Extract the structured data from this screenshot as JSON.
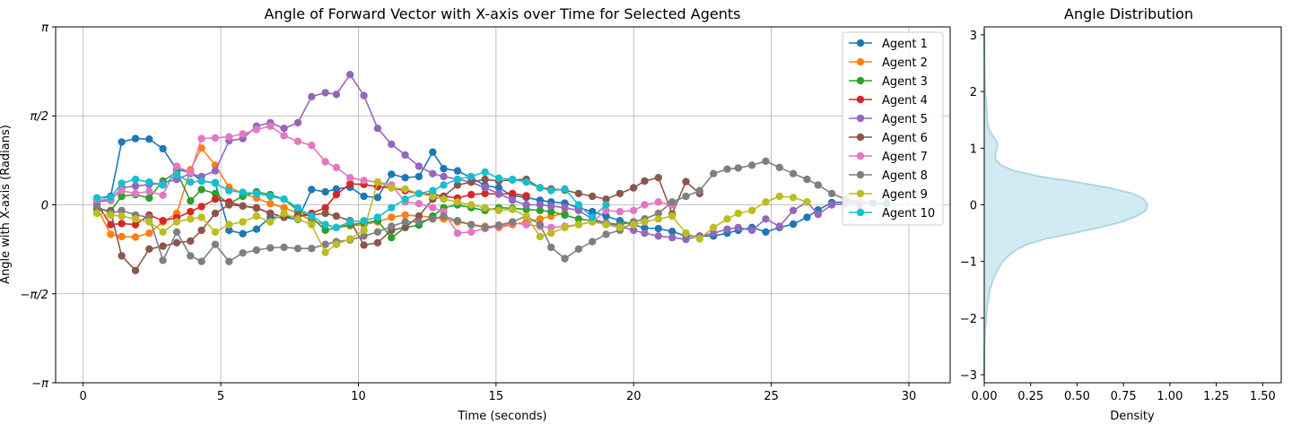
{
  "main_chart": {
    "title": "Angle of Forward Vector with X-axis over Time for Selected Agents",
    "xlabel": "Time (seconds)",
    "ylabel": "Angle with X-axis (Radians)",
    "xticks": [
      0,
      5,
      10,
      15,
      20,
      25,
      30
    ],
    "yticks": [
      {
        "value": -3.14159,
        "label": "−π"
      },
      {
        "value": -1.5708,
        "label": "−π/2"
      },
      {
        "value": 0,
        "label": "0"
      },
      {
        "value": 1.5708,
        "label": "π/2"
      },
      {
        "value": 3.14159,
        "label": "π"
      }
    ]
  },
  "side_chart": {
    "title": "Angle Distribution",
    "xlabel": "Density",
    "xticks": [
      "0.00",
      "0.25",
      "0.50",
      "0.75",
      "1.00",
      "1.25",
      "1.50"
    ],
    "yticks": [
      "−3",
      "−2",
      "−1",
      "0",
      "1",
      "2",
      "3"
    ]
  },
  "chart_data": [
    {
      "type": "line",
      "title": "Angle of Forward Vector with X-axis over Time for Selected Agents",
      "xlabel": "Time (seconds)",
      "ylabel": "Angle with X-axis (Radians)",
      "xlim": [
        -1,
        31.5
      ],
      "ylim": [
        -3.14159,
        3.14159
      ],
      "grid": true,
      "legend": "top-right",
      "x": [
        0.5,
        1.0,
        1.4,
        1.9,
        2.4,
        2.9,
        3.4,
        3.9,
        4.3,
        4.8,
        5.3,
        5.8,
        6.3,
        6.8,
        7.3,
        7.8,
        8.3,
        8.8,
        9.2,
        9.7,
        10.2,
        10.7,
        11.2,
        11.7,
        12.2,
        12.7,
        13.1,
        13.6,
        14.1,
        14.6,
        15.1,
        15.6,
        16.1,
        16.6,
        17.0,
        17.5,
        18.0,
        18.5,
        19.0,
        19.5,
        20.0,
        20.4,
        20.9,
        21.4,
        21.9,
        22.4,
        22.9,
        23.4,
        23.8,
        24.3,
        24.8,
        25.3,
        25.8,
        26.3,
        26.7,
        27.2,
        27.7,
        28.2,
        28.7,
        29.2
      ],
      "series": [
        {
          "name": "Agent 1",
          "color": "#1f77b4",
          "values": [
            0.12,
            0.15,
            1.11,
            1.17,
            1.16,
            0.99,
            0.62,
            0.58,
            0.42,
            0.39,
            -0.45,
            -0.51,
            -0.43,
            -0.22,
            -0.22,
            -0.26,
            0.27,
            0.23,
            0.28,
            0.31,
            0.15,
            0.13,
            0.54,
            0.48,
            0.5,
            0.93,
            0.64,
            0.6,
            0.48,
            0.34,
            0.3,
            0.16,
            0.13,
            0.08,
            0.05,
            0.03,
            -0.05,
            -0.12,
            -0.2,
            -0.28,
            -0.35,
            -0.41,
            -0.42,
            -0.47,
            -0.55,
            -0.55,
            -0.55,
            -0.5,
            -0.45,
            -0.4,
            -0.48,
            -0.4,
            -0.34,
            -0.22,
            -0.09,
            0.04,
            0.05,
            0.04,
            0.03,
            0.02
          ]
        },
        {
          "name": "Agent 2",
          "color": "#ff7f0e",
          "values": [
            -0.05,
            -0.52,
            -0.56,
            -0.57,
            -0.5,
            -0.3,
            -0.15,
            0.62,
            1.0,
            0.7,
            0.31,
            0.2,
            0.12,
            0.02,
            -0.05,
            -0.15,
            -0.28,
            -0.35,
            -0.4,
            -0.37,
            -0.35,
            -0.3,
            -0.22,
            -0.18,
            -0.2,
            -0.22,
            -0.25,
            -0.3,
            -0.35,
            -0.38,
            -0.4,
            -0.35,
            -0.3,
            -0.25,
            -0.2,
            -0.15,
            null,
            null,
            null,
            null,
            null,
            null,
            null,
            null,
            null,
            null,
            null,
            null,
            null,
            null,
            null,
            null,
            null,
            null,
            null,
            null,
            null,
            null,
            null,
            null
          ]
        },
        {
          "name": "Agent 3",
          "color": "#2ca02c",
          "values": [
            -0.08,
            -0.1,
            0.15,
            0.18,
            0.12,
            0.42,
            0.58,
            0.07,
            0.27,
            0.2,
            0.02,
            0.15,
            0.23,
            0.18,
            0.1,
            -0.1,
            -0.22,
            -0.45,
            -0.4,
            -0.35,
            -0.32,
            -0.28,
            -0.58,
            -0.4,
            -0.36,
            -0.2,
            -0.05,
            0.0,
            -0.05,
            -0.1,
            -0.05,
            -0.06,
            -0.08,
            -0.1,
            -0.12,
            -0.18,
            -0.25,
            -0.28,
            -0.32,
            -0.35,
            -0.3,
            -0.25,
            null,
            null,
            null,
            null,
            null,
            null,
            null,
            null,
            null,
            null,
            null,
            null,
            null,
            null,
            null,
            null,
            null,
            null
          ]
        },
        {
          "name": "Agent 4",
          "color": "#d62728",
          "values": [
            0.02,
            -0.35,
            -0.33,
            -0.35,
            -0.18,
            -0.28,
            -0.23,
            -0.12,
            -0.03,
            0.1,
            0.05,
            -0.02,
            -0.06,
            -0.15,
            -0.22,
            -0.2,
            -0.15,
            -0.05,
            0.18,
            0.37,
            0.36,
            0.32,
            0.3,
            0.25,
            0.2,
            0.18,
            0.15,
            0.12,
            0.18,
            0.2,
            0.19,
            0.2,
            0.16,
            null,
            null,
            null,
            null,
            null,
            null,
            null,
            null,
            null,
            null,
            null,
            null,
            null,
            null,
            null,
            null,
            null,
            null,
            null,
            null,
            null,
            null,
            null,
            null,
            null,
            null,
            null
          ]
        },
        {
          "name": "Agent 5",
          "color": "#9467bd",
          "values": [
            0.05,
            0.08,
            0.3,
            0.33,
            0.36,
            0.38,
            0.45,
            0.55,
            0.5,
            0.6,
            1.13,
            1.17,
            1.39,
            1.45,
            1.35,
            1.45,
            1.91,
            1.98,
            1.95,
            2.3,
            1.93,
            1.35,
            1.07,
            0.88,
            0.68,
            0.55,
            0.5,
            0.45,
            0.4,
            0.3,
            0.2,
            0.08,
            0.0,
            0.0,
            -0.02,
            -0.05,
            -0.1,
            -0.25,
            -0.32,
            -0.38,
            -0.45,
            -0.5,
            -0.55,
            -0.58,
            -0.61,
            -0.55,
            -0.5,
            -0.43,
            -0.4,
            -0.45,
            -0.25,
            -0.38,
            -0.1,
            0.05,
            -0.17,
            0.0,
            0.02,
            0.0,
            null,
            null
          ]
        },
        {
          "name": "Agent 6",
          "color": "#8c564b",
          "values": [
            -0.05,
            -0.12,
            -0.9,
            -1.16,
            -0.78,
            -0.73,
            -0.67,
            -0.64,
            -0.45,
            -0.15,
            0.0,
            -0.02,
            -0.05,
            -0.15,
            -0.22,
            -0.2,
            -0.18,
            -0.15,
            -0.2,
            -0.28,
            -0.71,
            -0.67,
            -0.45,
            -0.4,
            -0.2,
            0.1,
            0.15,
            0.35,
            0.4,
            0.45,
            0.42,
            0.44,
            0.45,
            0.3,
            0.28,
            0.26,
            0.2,
            0.15,
            0.1,
            0.2,
            0.3,
            0.42,
            0.48,
            -0.16,
            0.41,
            0.2,
            null,
            null,
            null,
            null,
            null,
            null,
            null,
            null,
            null,
            null,
            null,
            null,
            null,
            null
          ]
        },
        {
          "name": "Agent 7",
          "color": "#e377c2",
          "values": [
            0.08,
            0.1,
            0.25,
            0.2,
            0.24,
            0.17,
            0.68,
            0.57,
            1.17,
            1.18,
            1.2,
            1.25,
            1.33,
            1.39,
            1.22,
            1.12,
            1.05,
            0.76,
            0.66,
            0.48,
            0.43,
            0.4,
            0.35,
            0.05,
            0.02,
            -0.05,
            -0.12,
            -0.5,
            -0.48,
            -0.42,
            -0.38,
            -0.32,
            -0.35,
            -0.38,
            -0.4,
            -0.38,
            -0.35,
            -0.3,
            -0.1,
            -0.12,
            -0.1,
            0.0,
            0.05,
            0.0,
            null,
            null,
            null,
            null,
            null,
            null,
            null,
            null,
            null,
            null,
            null,
            null,
            null,
            null,
            null,
            null
          ]
        },
        {
          "name": "Agent 8",
          "color": "#7f7f7f",
          "values": [
            -0.03,
            -0.15,
            -0.1,
            -0.18,
            -0.22,
            -0.98,
            -0.48,
            -0.9,
            -1.0,
            -0.7,
            -1.0,
            -0.85,
            -0.8,
            -0.76,
            -0.75,
            -0.77,
            -0.77,
            -0.7,
            -0.65,
            -0.62,
            -0.55,
            -0.48,
            -0.38,
            -0.3,
            -0.3,
            -0.25,
            -0.2,
            -0.28,
            -0.35,
            -0.4,
            -0.36,
            -0.3,
            -0.2,
            -0.35,
            -0.75,
            -0.95,
            -0.78,
            -0.65,
            -0.52,
            -0.45,
            -0.3,
            -0.25,
            -0.15,
            0.05,
            0.15,
            0.25,
            0.55,
            0.63,
            0.65,
            0.7,
            0.77,
            0.66,
            0.55,
            0.45,
            0.35,
            0.2,
            0.1,
            0.05,
            null,
            null
          ]
        },
        {
          "name": "Agent 9",
          "color": "#bcbd22",
          "values": [
            -0.15,
            -0.18,
            -0.2,
            -0.25,
            -0.3,
            -0.48,
            -0.3,
            -0.25,
            -0.22,
            -0.48,
            -0.35,
            -0.3,
            -0.2,
            -0.3,
            -0.15,
            -0.25,
            -0.35,
            -0.84,
            -0.7,
            -0.6,
            -0.45,
            0.4,
            0.3,
            0.28,
            0.2,
            0.15,
            0.1,
            0.05,
            0.0,
            -0.05,
            -0.1,
            -0.08,
            -0.2,
            -0.56,
            -0.5,
            -0.4,
            -0.35,
            -0.3,
            -0.35,
            -0.4,
            -0.35,
            -0.3,
            -0.25,
            -0.2,
            -0.5,
            -0.6,
            -0.4,
            -0.25,
            -0.15,
            -0.1,
            0.05,
            0.15,
            0.13,
            0.05,
            null,
            null,
            null,
            null,
            null,
            null
          ]
        },
        {
          "name": "Agent 10",
          "color": "#17becf",
          "values": [
            0.12,
            0.13,
            0.38,
            0.45,
            0.4,
            0.35,
            0.53,
            0.4,
            0.42,
            0.38,
            0.25,
            0.22,
            0.2,
            0.15,
            0.1,
            -0.05,
            -0.2,
            -0.35,
            -0.4,
            -0.3,
            -0.28,
            -0.22,
            -0.05,
            0.1,
            0.2,
            0.25,
            0.35,
            0.45,
            0.5,
            0.58,
            0.47,
            0.45,
            0.4,
            0.3,
            0.25,
            0.28,
            0.0,
            -0.22,
            0.0,
            null,
            null,
            null,
            null,
            null,
            null,
            null,
            null,
            null,
            null,
            null,
            null,
            null,
            null,
            null,
            null,
            null,
            null,
            null,
            null,
            null
          ]
        }
      ]
    },
    {
      "type": "area",
      "title": "Angle Distribution",
      "xlabel": "Density",
      "xlim": [
        0,
        1.6
      ],
      "ylim": [
        -3.14159,
        3.14159
      ],
      "grid": false,
      "fill_color": "#add8e6",
      "line_color": "#add8e6",
      "y": [
        -3.1,
        -2.6,
        -2.2,
        -1.8,
        -1.5,
        -1.3,
        -1.1,
        -1.0,
        -0.9,
        -0.8,
        -0.7,
        -0.6,
        -0.5,
        -0.4,
        -0.3,
        -0.2,
        -0.1,
        0.0,
        0.1,
        0.2,
        0.3,
        0.4,
        0.5,
        0.6,
        0.7,
        0.8,
        0.9,
        1.0,
        1.1,
        1.2,
        1.3,
        1.4,
        1.5,
        1.6,
        1.8,
        2.0,
        2.2,
        2.6,
        3.1
      ],
      "x": [
        0.0,
        0.0,
        0.005,
        0.015,
        0.03,
        0.05,
        0.08,
        0.1,
        0.13,
        0.17,
        0.23,
        0.33,
        0.48,
        0.62,
        0.74,
        0.82,
        0.87,
        0.88,
        0.86,
        0.8,
        0.67,
        0.5,
        0.3,
        0.16,
        0.09,
        0.06,
        0.06,
        0.07,
        0.07,
        0.05,
        0.03,
        0.02,
        0.015,
        0.015,
        0.01,
        0.005,
        0.003,
        0.001,
        0.0
      ]
    }
  ]
}
